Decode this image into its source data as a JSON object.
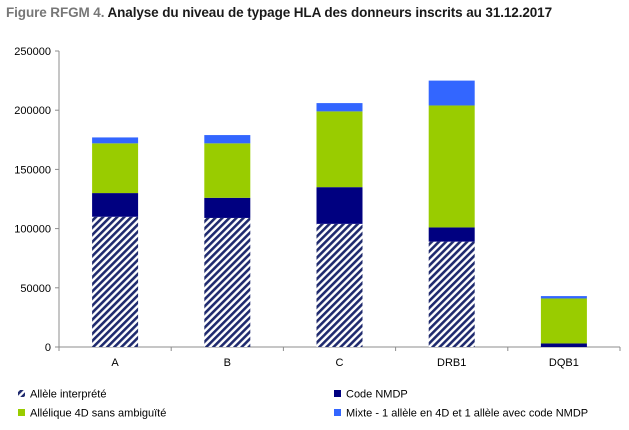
{
  "title_prefix": "Figure RFGM 4.",
  "title_main": "Analyse du niveau de typage HLA des donneurs inscrits au 31.12.2017",
  "chart_data": {
    "type": "bar",
    "stacked": true,
    "title": "Figure RFGM 4. Analyse du niveau de typage HLA des donneurs inscrits au 31.12.2017",
    "xlabel": "",
    "ylabel": "",
    "categories": [
      "A",
      "B",
      "C",
      "DRB1",
      "DQB1"
    ],
    "ylim": [
      0,
      250000
    ],
    "yticks": [
      0,
      50000,
      100000,
      150000,
      200000,
      250000
    ],
    "grid": false,
    "legend_position": "bottom",
    "series": [
      {
        "name": "Allèle interprété",
        "color": "#1f2a6e",
        "pattern": "diagonal-hatch",
        "values": [
          110000,
          109000,
          104000,
          89000,
          0
        ]
      },
      {
        "name": "Code NMDP",
        "color": "#000080",
        "pattern": "solid",
        "values": [
          20000,
          17000,
          31000,
          12000,
          3000
        ]
      },
      {
        "name": "Allélique 4D sans ambiguïté",
        "color": "#99cc00",
        "pattern": "solid",
        "values": [
          42000,
          46000,
          64000,
          103000,
          38000
        ]
      },
      {
        "name": "Mixte - 1 allèle en 4D et 1 allèle avec code NMDP",
        "color": "#3366ff",
        "pattern": "solid",
        "values": [
          5000,
          7000,
          7000,
          21000,
          2000
        ]
      }
    ]
  }
}
